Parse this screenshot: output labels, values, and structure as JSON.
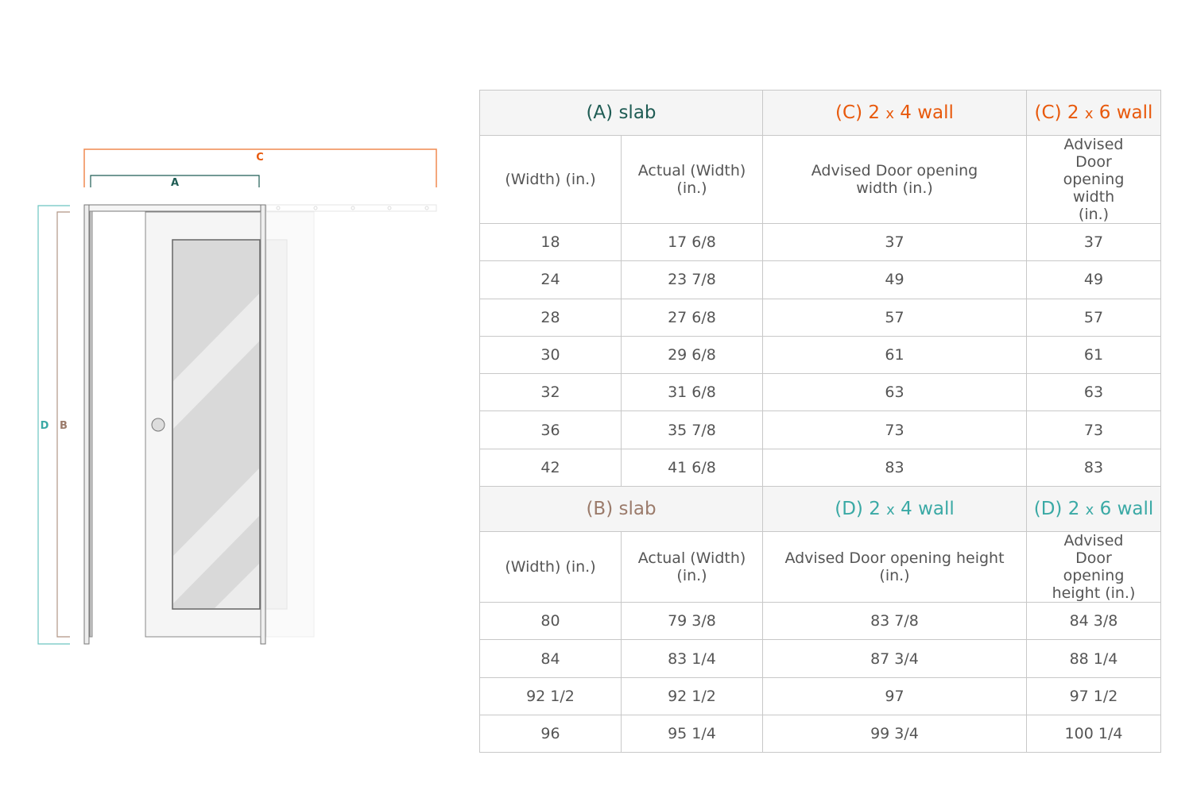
{
  "diagram": {
    "labels": {
      "a": "A",
      "b": "B",
      "c": "C",
      "d": "D"
    },
    "colors": {
      "a": "#1f5c54",
      "b": "#9b7b6b",
      "c": "#e8590c",
      "d": "#3aa9a5"
    }
  },
  "width_table": {
    "headers": [
      {
        "prefix": "(A)",
        "text": "slab"
      },
      {
        "prefix": "(C)",
        "text": "2",
        "x": "x",
        "text2": "4 wall"
      },
      {
        "prefix": "(C)",
        "text": "2",
        "x": "x",
        "text2": "6 wall"
      }
    ],
    "subheaders": [
      "(Width) (in.)",
      "Actual (Width) (in.)",
      "Advised Door opening width (in.)",
      "Advised Door opening width (in.)"
    ],
    "rows": [
      [
        "18",
        "17 6/8",
        "37",
        "37"
      ],
      [
        "24",
        "23 7/8",
        "49",
        "49"
      ],
      [
        "28",
        "27 6/8",
        "57",
        "57"
      ],
      [
        "30",
        "29 6/8",
        "61",
        "61"
      ],
      [
        "32",
        "31 6/8",
        "63",
        "63"
      ],
      [
        "36",
        "35 7/8",
        "73",
        "73"
      ],
      [
        "42",
        "41 6/8",
        "83",
        "83"
      ]
    ]
  },
  "height_table": {
    "headers": [
      {
        "prefix": "(B)",
        "text": "slab"
      },
      {
        "prefix": "(D)",
        "text": "2",
        "x": "x",
        "text2": "4 wall"
      },
      {
        "prefix": "(D)",
        "text": "2",
        "x": "x",
        "text2": "6 wall"
      }
    ],
    "subheaders": [
      "(Width) (in.)",
      "Actual (Width) (in.)",
      "Advised Door opening height (in.)",
      "Advised Door opening height (in.)"
    ],
    "rows": [
      [
        "80",
        "79 3/8",
        "83 7/8",
        "84 3/8"
      ],
      [
        "84",
        "83 1/4",
        "87 3/4",
        "88 1/4"
      ],
      [
        "92 1/2",
        "92 1/2",
        "97",
        "97 1/2"
      ],
      [
        "96",
        "95 1/4",
        "99 3/4",
        "100 1/4"
      ]
    ]
  }
}
